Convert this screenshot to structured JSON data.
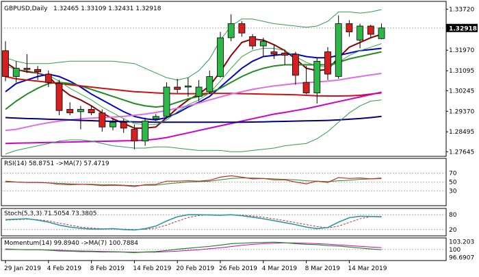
{
  "chart_data": {
    "type": "candlestick",
    "symbol_label": "GBPUSD,Daily",
    "ohlc_text": "1.32465 1.33109 1.32431 1.32918",
    "current_price_label": "1.32918",
    "colors": {
      "bull": "#2db84a",
      "bear": "#d42020",
      "ma_fast": "#8b0000",
      "ma_mid": "#0000cc",
      "ma_slow_green": "#228b22",
      "ma_pink": "#e06ce6",
      "ma_violet": "#cc00cc",
      "ma_red": "#cc1111",
      "ma_navy": "#000080",
      "bollinger": "#2e9e4e",
      "thin_green": "#3aa84a",
      "indicator_main": "#2a9aa0",
      "indicator_signal": "#cc2a2a",
      "momentum_main": "#228b22",
      "momentum_signal": "#cc00cc",
      "price_tag_bg": "#000000"
    },
    "x_tick_labels": [
      "29 Jan 2019",
      "4 Feb 2019",
      "8 Feb 2019",
      "14 Feb 2019",
      "20 Feb 2019",
      "26 Feb 2019",
      "4 Mar 2019",
      "8 Mar 2019",
      "14 Mar 2019"
    ],
    "y_tick_labels": [
      "1.33720",
      "1.32918",
      "1.31970",
      "1.31095",
      "1.30245",
      "1.29370",
      "1.28495",
      "1.27645"
    ],
    "y_ticks": [
      1.3372,
      1.3197,
      1.31095,
      1.30245,
      1.2937,
      1.28495,
      1.27645
    ],
    "ylim": [
      1.2745,
      1.3405
    ],
    "current_price": 1.32918,
    "candles": [
      {
        "o": 1.3195,
        "h": 1.3235,
        "l": 1.3065,
        "c": 1.3085
      },
      {
        "o": 1.3085,
        "h": 1.315,
        "l": 1.306,
        "c": 1.312
      },
      {
        "o": 1.312,
        "h": 1.318,
        "l": 1.31,
        "c": 1.3115
      },
      {
        "o": 1.3115,
        "h": 1.313,
        "l": 1.307,
        "c": 1.3105
      },
      {
        "o": 1.3095,
        "h": 1.311,
        "l": 1.304,
        "c": 1.306
      },
      {
        "o": 1.3055,
        "h": 1.307,
        "l": 1.292,
        "c": 1.294
      },
      {
        "o": 1.2945,
        "h": 1.2975,
        "l": 1.292,
        "c": 1.293
      },
      {
        "o": 1.2935,
        "h": 1.296,
        "l": 1.286,
        "c": 1.2945
      },
      {
        "o": 1.2945,
        "h": 1.296,
        "l": 1.292,
        "c": 1.293
      },
      {
        "o": 1.293,
        "h": 1.2945,
        "l": 1.285,
        "c": 1.287
      },
      {
        "o": 1.287,
        "h": 1.2905,
        "l": 1.2855,
        "c": 1.289
      },
      {
        "o": 1.289,
        "h": 1.2905,
        "l": 1.2845,
        "c": 1.2865
      },
      {
        "o": 1.286,
        "h": 1.288,
        "l": 1.2775,
        "c": 1.281
      },
      {
        "o": 1.281,
        "h": 1.291,
        "l": 1.279,
        "c": 1.2895
      },
      {
        "o": 1.2905,
        "h": 1.2925,
        "l": 1.2895,
        "c": 1.2915
      },
      {
        "o": 1.2915,
        "h": 1.306,
        "l": 1.2905,
        "c": 1.304
      },
      {
        "o": 1.304,
        "h": 1.3075,
        "l": 1.3015,
        "c": 1.303
      },
      {
        "o": 1.304,
        "h": 1.308,
        "l": 1.3,
        "c": 1.3045
      },
      {
        "o": 1.3,
        "h": 1.307,
        "l": 1.298,
        "c": 1.304
      },
      {
        "o": 1.302,
        "h": 1.311,
        "l": 1.301,
        "c": 1.3085
      },
      {
        "o": 1.3085,
        "h": 1.3275,
        "l": 1.308,
        "c": 1.325
      },
      {
        "o": 1.325,
        "h": 1.335,
        "l": 1.3235,
        "c": 1.331
      },
      {
        "o": 1.331,
        "h": 1.332,
        "l": 1.3255,
        "c": 1.327
      },
      {
        "o": 1.3255,
        "h": 1.3265,
        "l": 1.32,
        "c": 1.3215
      },
      {
        "o": 1.3215,
        "h": 1.325,
        "l": 1.317,
        "c": 1.3235
      },
      {
        "o": 1.319,
        "h": 1.322,
        "l": 1.316,
        "c": 1.318
      },
      {
        "o": 1.3185,
        "h": 1.32,
        "l": 1.3135,
        "c": 1.3175
      },
      {
        "o": 1.318,
        "h": 1.319,
        "l": 1.305,
        "c": 1.309
      },
      {
        "o": 1.306,
        "h": 1.313,
        "l": 1.301,
        "c": 1.3015
      },
      {
        "o": 1.3015,
        "h": 1.3165,
        "l": 1.297,
        "c": 1.315
      },
      {
        "o": 1.319,
        "h": 1.321,
        "l": 1.307,
        "c": 1.3095
      },
      {
        "o": 1.3085,
        "h": 1.3345,
        "l": 1.3075,
        "c": 1.331
      },
      {
        "o": 1.331,
        "h": 1.3325,
        "l": 1.3255,
        "c": 1.3275
      },
      {
        "o": 1.324,
        "h": 1.331,
        "l": 1.3205,
        "c": 1.33
      },
      {
        "o": 1.33,
        "h": 1.3305,
        "l": 1.325,
        "c": 1.3265
      },
      {
        "o": 1.32465,
        "h": 1.33109,
        "l": 1.32431,
        "c": 1.32918
      }
    ],
    "moving_averages": [
      {
        "key": "ma_fast",
        "values": [
          1.3145,
          1.3115,
          1.3105,
          1.31,
          1.3085,
          1.304,
          1.3005,
          1.2985,
          1.296,
          1.293,
          1.2905,
          1.2885,
          1.2865,
          1.2865,
          1.287,
          1.291,
          1.295,
          1.2985,
          1.301,
          1.3045,
          1.3105,
          1.3175,
          1.323,
          1.3245,
          1.324,
          1.322,
          1.3195,
          1.316,
          1.312,
          1.311,
          1.3115,
          1.3165,
          1.321,
          1.323,
          1.325,
          1.3265
        ]
      },
      {
        "key": "ma_mid",
        "values": [
          1.302,
          1.3055,
          1.307,
          1.3085,
          1.3095,
          1.3085,
          1.3065,
          1.304,
          1.301,
          1.2985,
          1.296,
          1.2935,
          1.2915,
          1.2905,
          1.29,
          1.291,
          1.293,
          1.2955,
          1.2975,
          1.3,
          1.304,
          1.308,
          1.312,
          1.315,
          1.317,
          1.3175,
          1.318,
          1.318,
          1.317,
          1.3165,
          1.3165,
          1.3175,
          1.3185,
          1.3195,
          1.32,
          1.3205
        ]
      },
      {
        "key": "ma_slow_green",
        "values": [
          1.2945,
          1.298,
          1.301,
          1.3035,
          1.3055,
          1.306,
          1.3055,
          1.3045,
          1.303,
          1.3015,
          1.3,
          1.2985,
          1.297,
          1.296,
          1.2955,
          1.296,
          1.2975,
          1.299,
          1.3,
          1.3015,
          1.3035,
          1.306,
          1.3085,
          1.3105,
          1.312,
          1.313,
          1.3135,
          1.3135,
          1.3135,
          1.3135,
          1.3135,
          1.3145,
          1.316,
          1.317,
          1.318,
          1.319
        ]
      },
      {
        "key": "ma_red",
        "values": [
          1.3085,
          1.3075,
          1.307,
          1.3065,
          1.306,
          1.3055,
          1.305,
          1.3045,
          1.304,
          1.3035,
          1.303,
          1.3025,
          1.302,
          1.3018,
          1.3015,
          1.3013,
          1.3012,
          1.3012,
          1.3012,
          1.3013,
          1.3013,
          1.3013,
          1.3012,
          1.3011,
          1.301,
          1.3009,
          1.3008,
          1.3007,
          1.3005,
          1.3003,
          1.3002,
          1.3002,
          1.3003,
          1.3005,
          1.301,
          1.3015
        ]
      },
      {
        "key": "ma_pink",
        "values": [
          1.2855,
          1.286,
          1.287,
          1.288,
          1.2888,
          1.2895,
          1.29,
          1.2905,
          1.2908,
          1.291,
          1.2912,
          1.2915,
          1.292,
          1.2925,
          1.2932,
          1.294,
          1.295,
          1.296,
          1.2972,
          1.2985,
          1.2998,
          1.301,
          1.302,
          1.303,
          1.3038,
          1.3045,
          1.305,
          1.3055,
          1.3058,
          1.3062,
          1.3065,
          1.307,
          1.3078,
          1.3085,
          1.3092,
          1.3098
        ]
      },
      {
        "key": "ma_violet",
        "values": [
          1.28,
          1.2801,
          1.2802,
          1.2803,
          1.2804,
          1.2805,
          1.2806,
          1.2807,
          1.2808,
          1.2809,
          1.281,
          1.2811,
          1.2812,
          1.2814,
          1.2818,
          1.2825,
          1.2835,
          1.2845,
          1.2855,
          1.2865,
          1.2875,
          1.2885,
          1.2895,
          1.2905,
          1.2915,
          1.2925,
          1.2932,
          1.294,
          1.2948,
          1.2958,
          1.2968,
          1.2978,
          1.2988,
          1.2998,
          1.3008,
          1.3018
        ]
      },
      {
        "key": "ma_navy",
        "values": [
          1.291,
          1.2908,
          1.2906,
          1.2905,
          1.2903,
          1.2902,
          1.29,
          1.2898,
          1.2897,
          1.2895,
          1.2894,
          1.2893,
          1.2892,
          1.2891,
          1.289,
          1.289,
          1.289,
          1.289,
          1.289,
          1.289,
          1.289,
          1.289,
          1.289,
          1.2891,
          1.2892,
          1.2893,
          1.2894,
          1.2895,
          1.2896,
          1.2897,
          1.2898,
          1.29,
          1.2903,
          1.2906,
          1.291,
          1.2915
        ]
      },
      {
        "key": "bollinger",
        "values": [
          1.3165,
          1.315,
          1.314,
          1.314,
          1.314,
          1.3145,
          1.315,
          1.315,
          1.315,
          1.315,
          1.315,
          1.3145,
          1.314,
          1.312,
          1.31,
          1.308,
          1.307,
          1.308,
          1.311,
          1.316,
          1.324,
          1.33,
          1.333,
          1.333,
          1.332,
          1.331,
          1.3305,
          1.33,
          1.3295,
          1.33,
          1.332,
          1.336,
          1.336,
          1.3355,
          1.336,
          1.337
        ]
      },
      {
        "key": "bollinger",
        "values": [
          1.2755,
          1.277,
          1.278,
          1.279,
          1.28,
          1.281,
          1.2815,
          1.2815,
          1.281,
          1.28,
          1.279,
          1.2785,
          1.278,
          1.278,
          1.2785,
          1.2785,
          1.278,
          1.2775,
          1.277,
          1.277,
          1.277,
          1.2765,
          1.2765,
          1.277,
          1.2775,
          1.278,
          1.279,
          1.2795,
          1.28,
          1.282,
          1.285,
          1.289,
          1.293,
          1.296,
          1.298,
          1.2985
        ]
      },
      {
        "key": "thin_green",
        "values": [
          1.313,
          1.3115,
          1.311,
          1.31,
          1.309,
          1.3065,
          1.3035,
          1.301,
          1.2985,
          1.2955,
          1.293,
          1.2905,
          1.2885,
          1.288,
          1.288,
          1.29,
          1.2935,
          1.2965,
          1.2985,
          1.3015,
          1.3065,
          1.312,
          1.317,
          1.3195,
          1.3205,
          1.3205,
          1.3195,
          1.317,
          1.3145,
          1.313,
          1.3125,
          1.3145,
          1.3175,
          1.3195,
          1.321,
          1.3225
        ]
      }
    ],
    "panels": [
      {
        "name": "rsi",
        "label": "RSI(14) 58.8751  ->MA(7) 57.4719",
        "ylim": [
          0,
          100
        ],
        "levels": [
          70,
          50,
          30
        ],
        "axis_labels": [
          "70",
          "50",
          "30"
        ],
        "axis_values": [
          70,
          50,
          30
        ],
        "main": [
          52,
          50,
          49,
          49,
          48,
          45,
          44,
          45,
          44,
          42,
          43,
          42,
          40,
          44,
          45,
          52,
          52,
          53,
          52,
          54,
          61,
          64,
          61,
          57,
          58,
          55,
          55,
          50,
          46,
          52,
          49,
          60,
          58,
          59,
          57,
          58.8751
        ],
        "signal": [
          50,
          50,
          49,
          49,
          48,
          47,
          46,
          45,
          45,
          44,
          44,
          43,
          42,
          43,
          43,
          46,
          48,
          50,
          51,
          52,
          55,
          58,
          59,
          59,
          58,
          57,
          56,
          55,
          53,
          52,
          51,
          53,
          54,
          56,
          57,
          57.4719
        ]
      },
      {
        "name": "stoch",
        "label": "Stoch(5,3,3) 71.5054 73.3805",
        "ylim": [
          0,
          100
        ],
        "levels": [
          80,
          20
        ],
        "axis_labels": [
          "80",
          "20"
        ],
        "axis_values": [
          80,
          20
        ],
        "main": [
          60,
          62,
          64,
          58,
          50,
          38,
          30,
          25,
          22,
          22,
          24,
          20,
          18,
          24,
          34,
          55,
          72,
          80,
          80,
          79,
          78,
          80,
          76,
          70,
          64,
          56,
          48,
          40,
          30,
          24,
          28,
          50,
          68,
          74,
          73,
          71.5054
        ],
        "signal": [
          58,
          60,
          62,
          60,
          55,
          46,
          38,
          30,
          26,
          23,
          23,
          22,
          20,
          21,
          26,
          38,
          54,
          69,
          77,
          80,
          79,
          79,
          78,
          75,
          70,
          63,
          56,
          48,
          40,
          32,
          27,
          34,
          49,
          64,
          72,
          73.3805
        ]
      },
      {
        "name": "momentum",
        "label": "Momentum(14) 99.8940  ->MA(7) 100.7884",
        "ylim": [
          96.0,
          104.2
        ],
        "levels": [
          100
        ],
        "axis_labels": [
          "103.203",
          "100",
          "96.6907"
        ],
        "axis_values": [
          103.203,
          100,
          96.6907
        ],
        "main": [
          100.2,
          100.0,
          99.9,
          99.9,
          99.7,
          99.4,
          99.3,
          99.1,
          99.1,
          98.9,
          99.0,
          98.9,
          98.7,
          99.0,
          99.1,
          99.6,
          100.1,
          100.5,
          100.9,
          101.3,
          101.8,
          102.4,
          102.6,
          102.8,
          102.9,
          103.0,
          102.8,
          102.4,
          102.1,
          102.0,
          101.6,
          101.4,
          101.0,
          100.6,
          100.2,
          99.894
        ],
        "signal": [
          100.0,
          100.0,
          99.9,
          99.9,
          99.8,
          99.7,
          99.5,
          99.4,
          99.3,
          99.2,
          99.1,
          99.0,
          98.9,
          98.9,
          98.9,
          99.1,
          99.3,
          99.6,
          99.9,
          100.3,
          100.7,
          101.2,
          101.7,
          102.1,
          102.4,
          102.6,
          102.7,
          102.7,
          102.6,
          102.4,
          102.2,
          101.9,
          101.6,
          101.3,
          101.0,
          100.7884
        ]
      }
    ]
  }
}
